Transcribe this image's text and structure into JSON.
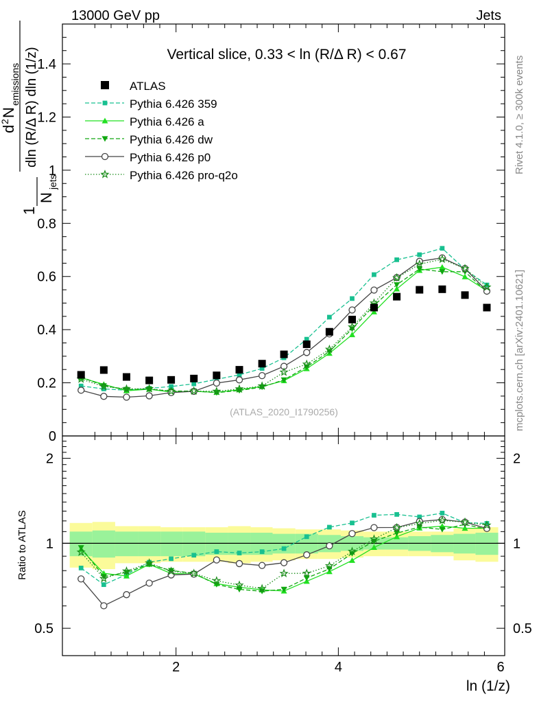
{
  "header": {
    "energy_label": "13000 GeV pp",
    "category_label": "Jets"
  },
  "side_labels": {
    "rivet": "Rivet 4.1.0, ≥ 300k events",
    "mcplots": "mcplots.cern.ch [arXiv:2401.10621]"
  },
  "chart_data": [
    {
      "type": "scatter",
      "title": "Vertical slice, 0.33 < ln (R/Δ R) < 0.67",
      "watermark": "(ATLAS_2020_I1790256)",
      "ylabel": {
        "prefix": "1",
        "njets": "N",
        "njets_sub": "jets",
        "numer_d": "d",
        "numer_sup": "2",
        "numer_n": "N",
        "numer_sub": "emissions",
        "denom": "dln (R/Δ R) dln (1/z)"
      },
      "xlim": [
        0.6,
        6.05
      ],
      "ylim": [
        0,
        1.55
      ],
      "x_ticks": [
        2,
        4,
        6
      ],
      "y_ticks": [
        {
          "v": 0,
          "label": "0"
        },
        {
          "v": 0.2,
          "label": "0.2"
        },
        {
          "v": 0.4,
          "label": "0.4"
        },
        {
          "v": 0.6,
          "label": "0.6"
        },
        {
          "v": 0.8,
          "label": "0.8"
        },
        {
          "v": 1.0,
          "label": "1"
        },
        {
          "v": 1.2,
          "label": "1.2"
        },
        {
          "v": 1.4,
          "label": "1.4"
        }
      ],
      "x": [
        0.83,
        1.11,
        1.39,
        1.67,
        1.94,
        2.22,
        2.5,
        2.78,
        3.06,
        3.33,
        3.61,
        3.89,
        4.17,
        4.44,
        4.72,
        5.0,
        5.28,
        5.56,
        5.83
      ],
      "data": {
        "name": "ATLAS",
        "values": [
          0.23,
          0.248,
          0.222,
          0.209,
          0.211,
          0.216,
          0.228,
          0.249,
          0.272,
          0.307,
          0.345,
          0.392,
          0.438,
          0.483,
          0.524,
          0.55,
          0.552,
          0.53,
          0.483
        ]
      },
      "series": [
        {
          "name": "Pythia 6.426 359",
          "color": "#18c090",
          "marker": "square",
          "dash": "6,3",
          "values": [
            0.188,
            0.177,
            0.172,
            0.179,
            0.186,
            0.196,
            0.213,
            0.23,
            0.254,
            0.294,
            0.364,
            0.447,
            0.517,
            0.607,
            0.663,
            0.682,
            0.706,
            0.627,
            0.568
          ]
        },
        {
          "name": "Pythia 6.426 a",
          "color": "#22e022",
          "marker": "triangle-up",
          "dash": "",
          "values": [
            0.219,
            0.194,
            0.17,
            0.176,
            0.165,
            0.168,
            0.164,
            0.174,
            0.186,
            0.208,
            0.253,
            0.311,
            0.381,
            0.467,
            0.553,
            0.623,
            0.635,
            0.599,
            0.546
          ]
        },
        {
          "name": "Pythia 6.426 dw",
          "color": "#10a810",
          "marker": "triangle-down",
          "dash": "6,3",
          "values": [
            0.222,
            0.189,
            0.175,
            0.176,
            0.169,
            0.169,
            0.163,
            0.171,
            0.184,
            0.211,
            0.26,
            0.318,
            0.403,
            0.491,
            0.569,
            0.628,
            0.618,
            0.618,
            0.542
          ]
        },
        {
          "name": "Pythia 6.426 p0",
          "color": "#444444",
          "marker": "circle-open",
          "dash": "",
          "values": [
            0.172,
            0.149,
            0.146,
            0.151,
            0.163,
            0.168,
            0.199,
            0.211,
            0.227,
            0.262,
            0.314,
            0.384,
            0.474,
            0.549,
            0.596,
            0.657,
            0.67,
            0.63,
            0.545
          ]
        },
        {
          "name": "Pythia 6.426 pro-q2o",
          "color": "#1a8c1a",
          "marker": "star-open",
          "dash": "1.5,2.5",
          "values": [
            0.214,
            0.186,
            0.177,
            0.178,
            0.168,
            0.169,
            0.168,
            0.177,
            0.188,
            0.24,
            0.27,
            0.326,
            0.41,
            0.5,
            0.595,
            0.646,
            0.665,
            0.63,
            0.56
          ]
        }
      ]
    },
    {
      "type": "line",
      "ylabel": "Ratio to ATLAS",
      "xlabel": "ln (1/z)",
      "scale": "log",
      "ylim": [
        0.4,
        2.4
      ],
      "y_ticks": [
        {
          "v": 0.5,
          "label": "0.5"
        },
        {
          "v": 1,
          "label": "1"
        },
        {
          "v": 2,
          "label": "2"
        }
      ],
      "band_bins": [
        {
          "lo": 0.69,
          "hi": 0.97,
          "inner": 0.1,
          "outer": 0.18
        },
        {
          "lo": 0.97,
          "hi": 1.25,
          "inner": 0.11,
          "outer": 0.19
        },
        {
          "lo": 1.25,
          "hi": 1.53,
          "inner": 0.1,
          "outer": 0.15
        },
        {
          "lo": 1.53,
          "hi": 1.81,
          "inner": 0.1,
          "outer": 0.15
        },
        {
          "lo": 1.81,
          "hi": 2.08,
          "inner": 0.1,
          "outer": 0.14
        },
        {
          "lo": 2.08,
          "hi": 2.36,
          "inner": 0.1,
          "outer": 0.14
        },
        {
          "lo": 2.36,
          "hi": 2.64,
          "inner": 0.09,
          "outer": 0.14
        },
        {
          "lo": 2.64,
          "hi": 2.92,
          "inner": 0.09,
          "outer": 0.15
        },
        {
          "lo": 2.92,
          "hi": 3.19,
          "inner": 0.09,
          "outer": 0.14
        },
        {
          "lo": 3.19,
          "hi": 3.47,
          "inner": 0.08,
          "outer": 0.13
        },
        {
          "lo": 3.47,
          "hi": 3.75,
          "inner": 0.08,
          "outer": 0.12
        },
        {
          "lo": 3.75,
          "hi": 4.03,
          "inner": 0.07,
          "outer": 0.12
        },
        {
          "lo": 4.03,
          "hi": 4.31,
          "inner": 0.06,
          "outer": 0.11
        },
        {
          "lo": 4.31,
          "hi": 4.58,
          "inner": 0.05,
          "outer": 0.1
        },
        {
          "lo": 4.58,
          "hi": 4.86,
          "inner": 0.05,
          "outer": 0.1
        },
        {
          "lo": 4.86,
          "hi": 5.14,
          "inner": 0.06,
          "outer": 0.1
        },
        {
          "lo": 5.14,
          "hi": 5.42,
          "inner": 0.07,
          "outer": 0.1
        },
        {
          "lo": 5.42,
          "hi": 5.69,
          "inner": 0.08,
          "outer": 0.13
        },
        {
          "lo": 5.69,
          "hi": 5.97,
          "inner": 0.09,
          "outer": 0.14
        }
      ],
      "band_colors": {
        "inner": "#9af29a",
        "outer": "#fbfb9a"
      }
    }
  ]
}
